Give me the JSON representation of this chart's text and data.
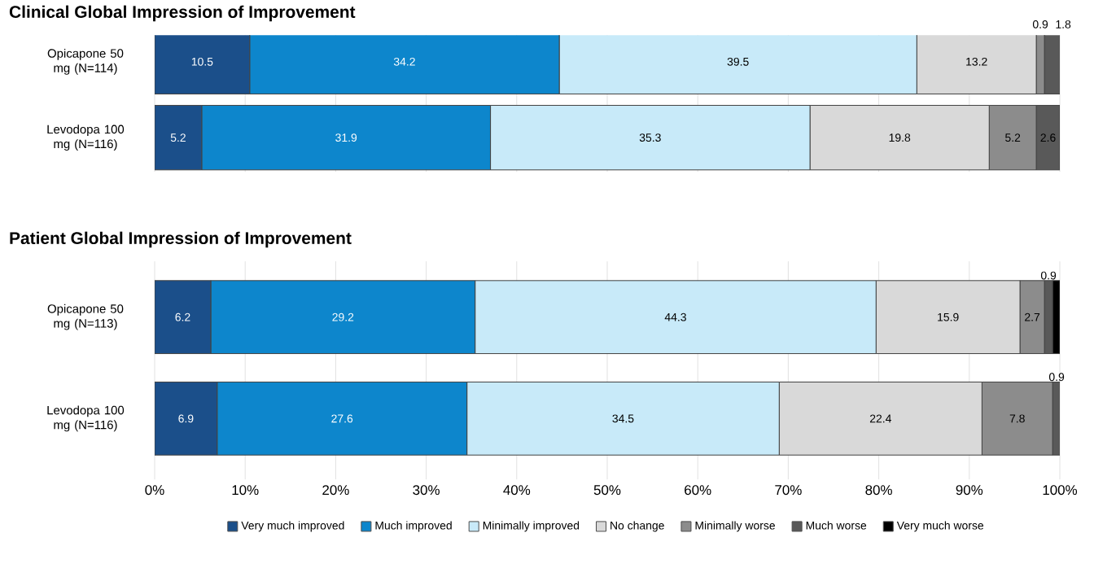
{
  "chart_data": [
    {
      "type": "bar",
      "orientation": "horizontal",
      "stacked": true,
      "title": "Clinical Global Impression of Improvement",
      "categories": [
        "Opicapone 50 mg (N=114)",
        "Levodopa 100 mg (N=116)"
      ],
      "xlim": [
        0,
        100
      ],
      "xticks": [
        {
          "value": 0,
          "label": null
        },
        {
          "value": 10,
          "label": null
        },
        {
          "value": 20,
          "label": null
        },
        {
          "value": 30,
          "label": null
        },
        {
          "value": 40,
          "label": null
        },
        {
          "value": 50,
          "label": null
        },
        {
          "value": 60,
          "label": null
        },
        {
          "value": 70,
          "label": null
        },
        {
          "value": 80,
          "label": null
        },
        {
          "value": 90,
          "label": null
        },
        {
          "value": 100,
          "label": null
        }
      ],
      "tick_labels": "y",
      "grid": "x",
      "legend": false,
      "series": [
        {
          "color": "#1b4f8a",
          "values": [
            10.5,
            5.2
          ],
          "value_labels": [
            "10.5",
            "5.2"
          ]
        },
        {
          "color": "#0d86cc",
          "values": [
            34.2,
            31.9
          ],
          "value_labels": [
            "34.2",
            "31.9"
          ]
        },
        {
          "color": "#c8eaf9",
          "values": [
            39.5,
            35.3
          ],
          "value_labels": [
            "39.5",
            "35.3"
          ]
        },
        {
          "color": "#d9d9d9",
          "values": [
            13.2,
            19.8
          ],
          "value_labels": [
            "13.2",
            "19.8"
          ]
        },
        {
          "color": "#8c8c8c",
          "values": [
            0.9,
            5.2
          ],
          "value_labels": [
            "0.9",
            "5.2"
          ]
        },
        {
          "color": "#595959",
          "values": [
            1.8,
            2.6
          ],
          "value_labels": [
            "1.8",
            "2.6"
          ]
        },
        {
          "color": "#000000",
          "values": [
            0,
            0
          ],
          "value_labels": [
            null,
            null
          ]
        }
      ]
    },
    {
      "type": "bar",
      "orientation": "horizontal",
      "stacked": true,
      "title": "Patient Global Impression of Improvement",
      "categories": [
        "Opicapone 50 mg (N=113)",
        "Levodopa 100 mg (N=116)"
      ],
      "xlim": [
        0,
        100
      ],
      "xticks": [
        {
          "value": 0,
          "label": "0%"
        },
        {
          "value": 10,
          "label": "10%"
        },
        {
          "value": 20,
          "label": "20%"
        },
        {
          "value": 30,
          "label": "30%"
        },
        {
          "value": 40,
          "label": "40%"
        },
        {
          "value": 50,
          "label": "50%"
        },
        {
          "value": 60,
          "label": "60%"
        },
        {
          "value": 70,
          "label": "70%"
        },
        {
          "value": 80,
          "label": "80%"
        },
        {
          "value": 90,
          "label": "90%"
        },
        {
          "value": 100,
          "label": "100%"
        }
      ],
      "grid": "x",
      "legend": "bottom",
      "series": [
        {
          "name": "Very much improved",
          "color": "#1b4f8a",
          "values": [
            6.2,
            6.9
          ],
          "value_labels": [
            "6.2",
            "6.9"
          ]
        },
        {
          "name": "Much improved",
          "color": "#0d86cc",
          "values": [
            29.2,
            27.6
          ],
          "value_labels": [
            "29.2",
            "27.6"
          ]
        },
        {
          "name": "Minimally improved",
          "color": "#c8eaf9",
          "values": [
            44.3,
            34.5
          ],
          "value_labels": [
            "44.3",
            "34.5"
          ]
        },
        {
          "name": "No change",
          "color": "#d9d9d9",
          "values": [
            15.9,
            22.4
          ],
          "value_labels": [
            "15.9",
            "22.4"
          ]
        },
        {
          "name": "Minimally worse",
          "color": "#8c8c8c",
          "values": [
            2.7,
            7.8
          ],
          "value_labels": [
            "2.7",
            "7.8"
          ]
        },
        {
          "name": "Much worse",
          "color": "#595959",
          "values": [
            0.9,
            0.9
          ],
          "value_labels": [
            "0.9",
            "0.9"
          ]
        },
        {
          "name": "Very much worse",
          "color": "#000000",
          "values": [
            0.8,
            0
          ],
          "value_labels": [
            null,
            null
          ]
        }
      ]
    }
  ]
}
